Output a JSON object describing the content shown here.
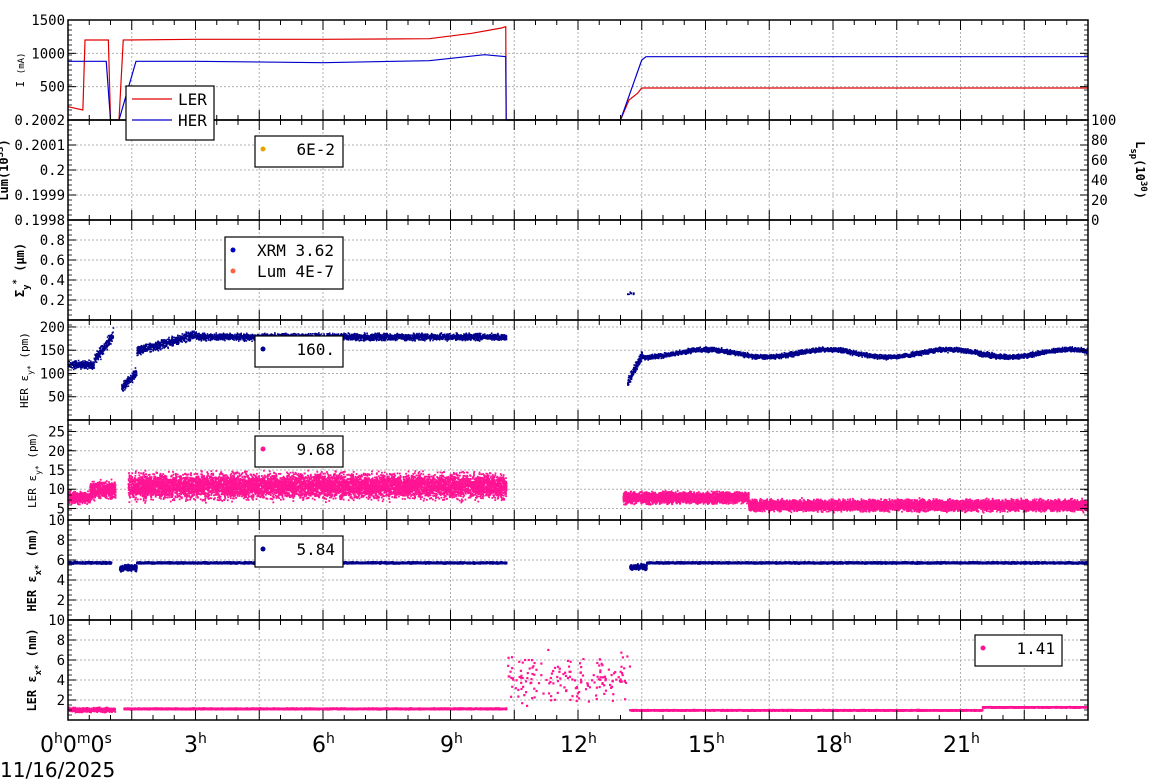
{
  "date_label": "11/16/2025",
  "x_axis": {
    "ticks": [
      {
        "main": "0",
        "sup1": "h",
        "mid": "0",
        "sup2": "m",
        "tail": "0",
        "sup3": "s"
      },
      {
        "main": "3",
        "sup1": "h"
      },
      {
        "main": "6",
        "sup1": "h"
      },
      {
        "main": "9",
        "sup1": "h"
      },
      {
        "main": "12",
        "sup1": "h"
      },
      {
        "main": "15",
        "sup1": "h"
      },
      {
        "main": "18",
        "sup1": "h"
      },
      {
        "main": "21",
        "sup1": "h"
      }
    ],
    "range_hours": [
      0,
      24
    ]
  },
  "colors": {
    "ler": "#e00000",
    "her": "#0000cc",
    "her_emit": "#00008b",
    "ler_emit": "#ff1493",
    "lum_dot": "#e8a000",
    "lum4": "#ff6040",
    "grid": "#b0b0b0"
  },
  "chart_data": [
    {
      "type": "line",
      "ylabel": "I (mA)",
      "ylim": [
        0,
        1500
      ],
      "yticks": [
        "1500",
        "1000",
        "500"
      ],
      "legend": [
        {
          "name": "LER"
        },
        {
          "name": "HER"
        }
      ],
      "series": [
        {
          "name": "LER",
          "x": [
            0,
            0.35,
            0.4,
            0.95,
            1.0,
            1.2,
            1.3,
            3,
            6,
            8.5,
            9.5,
            10.2,
            10.3,
            10.31,
            13.0,
            13.2,
            13.4,
            13.5,
            16,
            24
          ],
          "y": [
            200,
            150,
            1200,
            1200,
            0,
            0,
            1200,
            1210,
            1210,
            1220,
            1300,
            1380,
            1400,
            0,
            0,
            300,
            400,
            480,
            480,
            480
          ]
        },
        {
          "name": "HER",
          "x": [
            0,
            0.9,
            1.0,
            1.2,
            1.6,
            3,
            6,
            8.5,
            9.8,
            10.3,
            10.31,
            13.0,
            13.5,
            13.6,
            16,
            24
          ],
          "y": [
            880,
            880,
            0,
            0,
            880,
            880,
            860,
            890,
            980,
            950,
            0,
            0,
            900,
            950,
            950,
            950
          ]
        }
      ]
    },
    {
      "type": "scatter",
      "ylabel": "Lum(10",
      "ylim": [
        0.1998,
        0.2002
      ],
      "yticks": [
        "0.2002",
        "0.2001",
        "0.2",
        "0.1999",
        "0.1998"
      ],
      "y2label": "L",
      "y2ticks": [
        "100",
        "80",
        "60",
        "40",
        "20",
        "0"
      ],
      "legend": [
        {
          "name": "6E-2"
        }
      ]
    },
    {
      "type": "scatter",
      "ylabel": "Σ",
      "ylim": [
        0,
        1
      ],
      "yticks": [
        "0.8",
        "0.6",
        "0.4",
        "0.2"
      ],
      "legend": [
        {
          "name": "XRM 3.62"
        },
        {
          "name": "Lum 4E-7"
        }
      ]
    },
    {
      "type": "scatter",
      "ylabel": "HER ε",
      "ylim": [
        0,
        215
      ],
      "yticks": [
        "200",
        "150",
        "100",
        "50"
      ],
      "legend": [
        {
          "name": "160."
        }
      ]
    },
    {
      "type": "scatter",
      "ylabel": "LER ε",
      "ylim": [
        2,
        28
      ],
      "yticks": [
        "25",
        "20",
        "15",
        "10",
        "5"
      ],
      "legend": [
        {
          "name": "9.68"
        }
      ]
    },
    {
      "type": "scatter",
      "ylabel": "HER ε",
      "ylim": [
        0,
        10
      ],
      "yticks": [
        "10",
        "8",
        "6",
        "4",
        "2"
      ],
      "legend": [
        {
          "name": "5.84"
        }
      ]
    },
    {
      "type": "scatter",
      "ylabel": "LER ε",
      "ylim": [
        0,
        10
      ],
      "yticks": [
        "10",
        "8",
        "6",
        "4",
        "2"
      ],
      "legend": [
        {
          "name": "1.41"
        }
      ]
    }
  ],
  "ylabels": {
    "p0": {
      "pre": "I ",
      "unit": "(mA)"
    },
    "p1": {
      "pre": "Lum(10",
      "sup": "33",
      "post": ")"
    },
    "p1r": {
      "pre": "L",
      "sub": "sp",
      "mid": "(10",
      "sup": "30",
      "post": ")"
    },
    "p2": {
      "pre": "Σ",
      "sub": "y",
      "sup": "*",
      "post": " (μm)"
    },
    "p3": {
      "pre": "HER ε",
      "sub": "y*",
      "post": " (pm)"
    },
    "p4": {
      "pre": "LER ε",
      "sub": "y*",
      "post": " (pm)"
    },
    "p5": {
      "pre": "HER ε",
      "sub": "x*",
      "post": " (nm)"
    },
    "p6": {
      "pre": "LER ε",
      "sub": "x*",
      "post": " (nm)"
    }
  }
}
